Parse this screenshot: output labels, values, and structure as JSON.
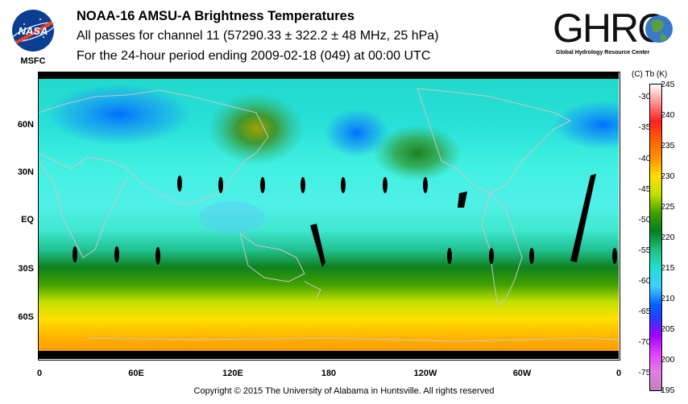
{
  "logos": {
    "nasa_text": "NASA",
    "msfc_text": "MSFC",
    "ghrc_text": "GHRC",
    "ghrc_subtitle": "Global Hydrology Resource Center"
  },
  "title": {
    "line1": "NOAA-16 AMSU-A Brightness Temperatures",
    "line2": "All passes for channel 11 (57290.33 ± 322.2 ± 48 MHz, 25 hPa)",
    "line3": "For the 24-hour period ending 2009-02-18 (049) at 00:00 UTC"
  },
  "map": {
    "lat_labels": [
      "60N",
      "30N",
      "EQ",
      "30S",
      "60S"
    ],
    "lon_labels": [
      "0",
      "60E",
      "120E",
      "180",
      "120W",
      "60W",
      "0"
    ]
  },
  "colorbar": {
    "header": "(C)  Tb  (K)",
    "celsius_labels": [
      "-30",
      "-35",
      "-40",
      "-45",
      "-50",
      "-55",
      "-60",
      "-65",
      "-70",
      "-75"
    ],
    "kelvin_labels": [
      "245",
      "240",
      "235",
      "230",
      "225",
      "220",
      "215",
      "210",
      "205",
      "200",
      "195"
    ],
    "colors": {
      "k245": "#ffffff",
      "k240": "#ff2020",
      "k235": "#ff8000",
      "k230": "#ffe000",
      "k225": "#40a000",
      "k220": "#008020",
      "k215": "#20e0d0",
      "k210": "#0060ff",
      "k205": "#a000ff",
      "k200": "#e040ff",
      "k195": "#c080c0"
    }
  },
  "footer": {
    "copyright": "Copyright © 2015 The University of Alabama in Huntsville.  All rights reserved"
  }
}
